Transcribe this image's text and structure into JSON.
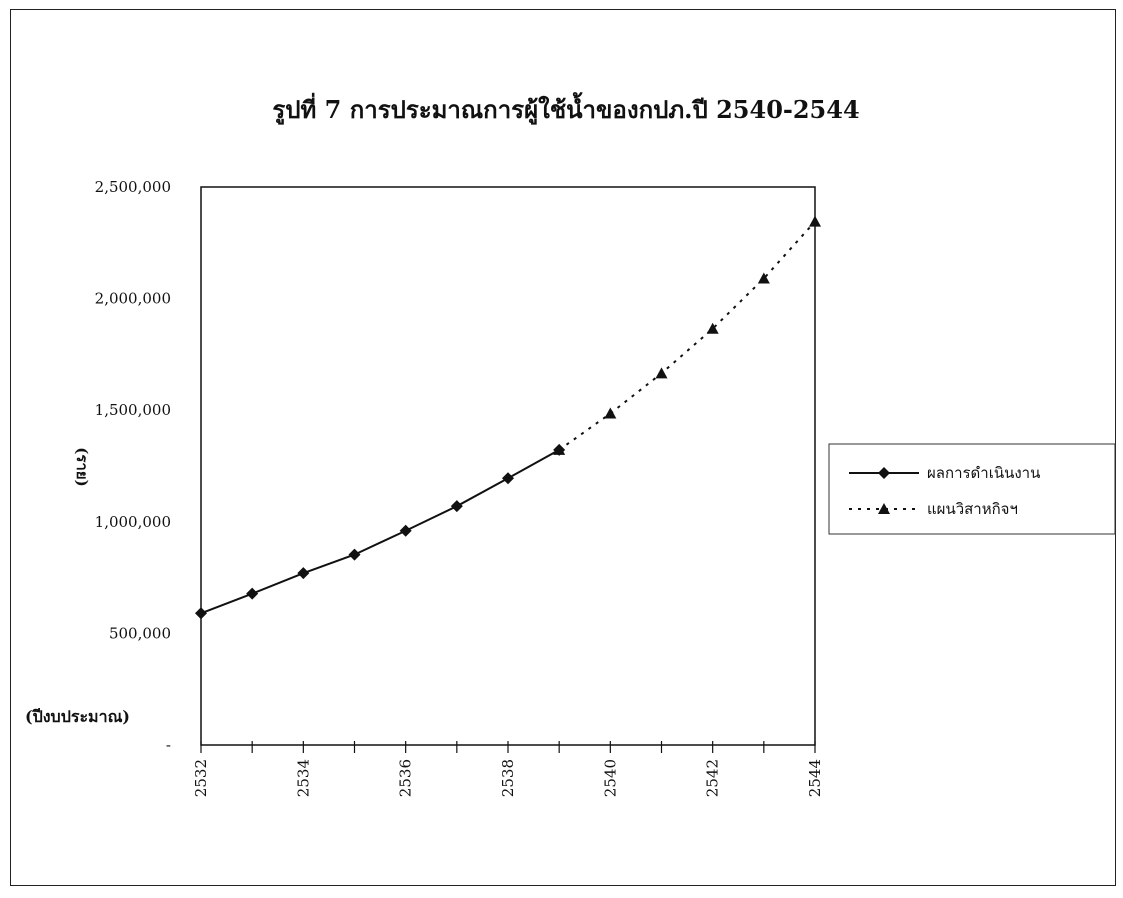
{
  "chart_data": {
    "type": "line",
    "title": "รูปที่ 7 การประมาณการผู้ใช้น้ำของกปภ.ปี 2540-2544",
    "ylabel": "(ราย)",
    "xlabel": "(ปีงบประมาณ)",
    "ylim": [
      0,
      2500000
    ],
    "y_ticks": [
      "-",
      "500,000",
      "1,000,000",
      "1,500,000",
      "2,000,000",
      "2,500,000"
    ],
    "y_tick_values": [
      0,
      500000,
      1000000,
      1500000,
      2000000,
      2500000
    ],
    "xlim": [
      2532,
      2544
    ],
    "x_ticks": [
      "2532",
      "2534",
      "2536",
      "2538",
      "2540",
      "2542",
      "2544"
    ],
    "x_tick_values": [
      2532,
      2534,
      2536,
      2538,
      2540,
      2542,
      2544
    ],
    "x_minor_ticks": [
      2532,
      2533,
      2534,
      2535,
      2536,
      2537,
      2538,
      2539,
      2540,
      2541,
      2542,
      2543,
      2544
    ],
    "grid": false,
    "legend_position": "right",
    "series": [
      {
        "name": "ผลการดำเนินงาน",
        "style": "solid",
        "marker": "diamond",
        "x": [
          2532,
          2533,
          2534,
          2535,
          2536,
          2537,
          2538,
          2539
        ],
        "y": [
          590000,
          678000,
          770000,
          853000,
          960000,
          1070000,
          1195000,
          1322000
        ]
      },
      {
        "name": "แผนวิสาหกิจฯ",
        "style": "dotted",
        "marker": "triangle",
        "x": [
          2539,
          2540,
          2541,
          2542,
          2543,
          2544
        ],
        "y": [
          1322000,
          1485000,
          1665000,
          1865000,
          2090000,
          2345000
        ]
      }
    ]
  }
}
